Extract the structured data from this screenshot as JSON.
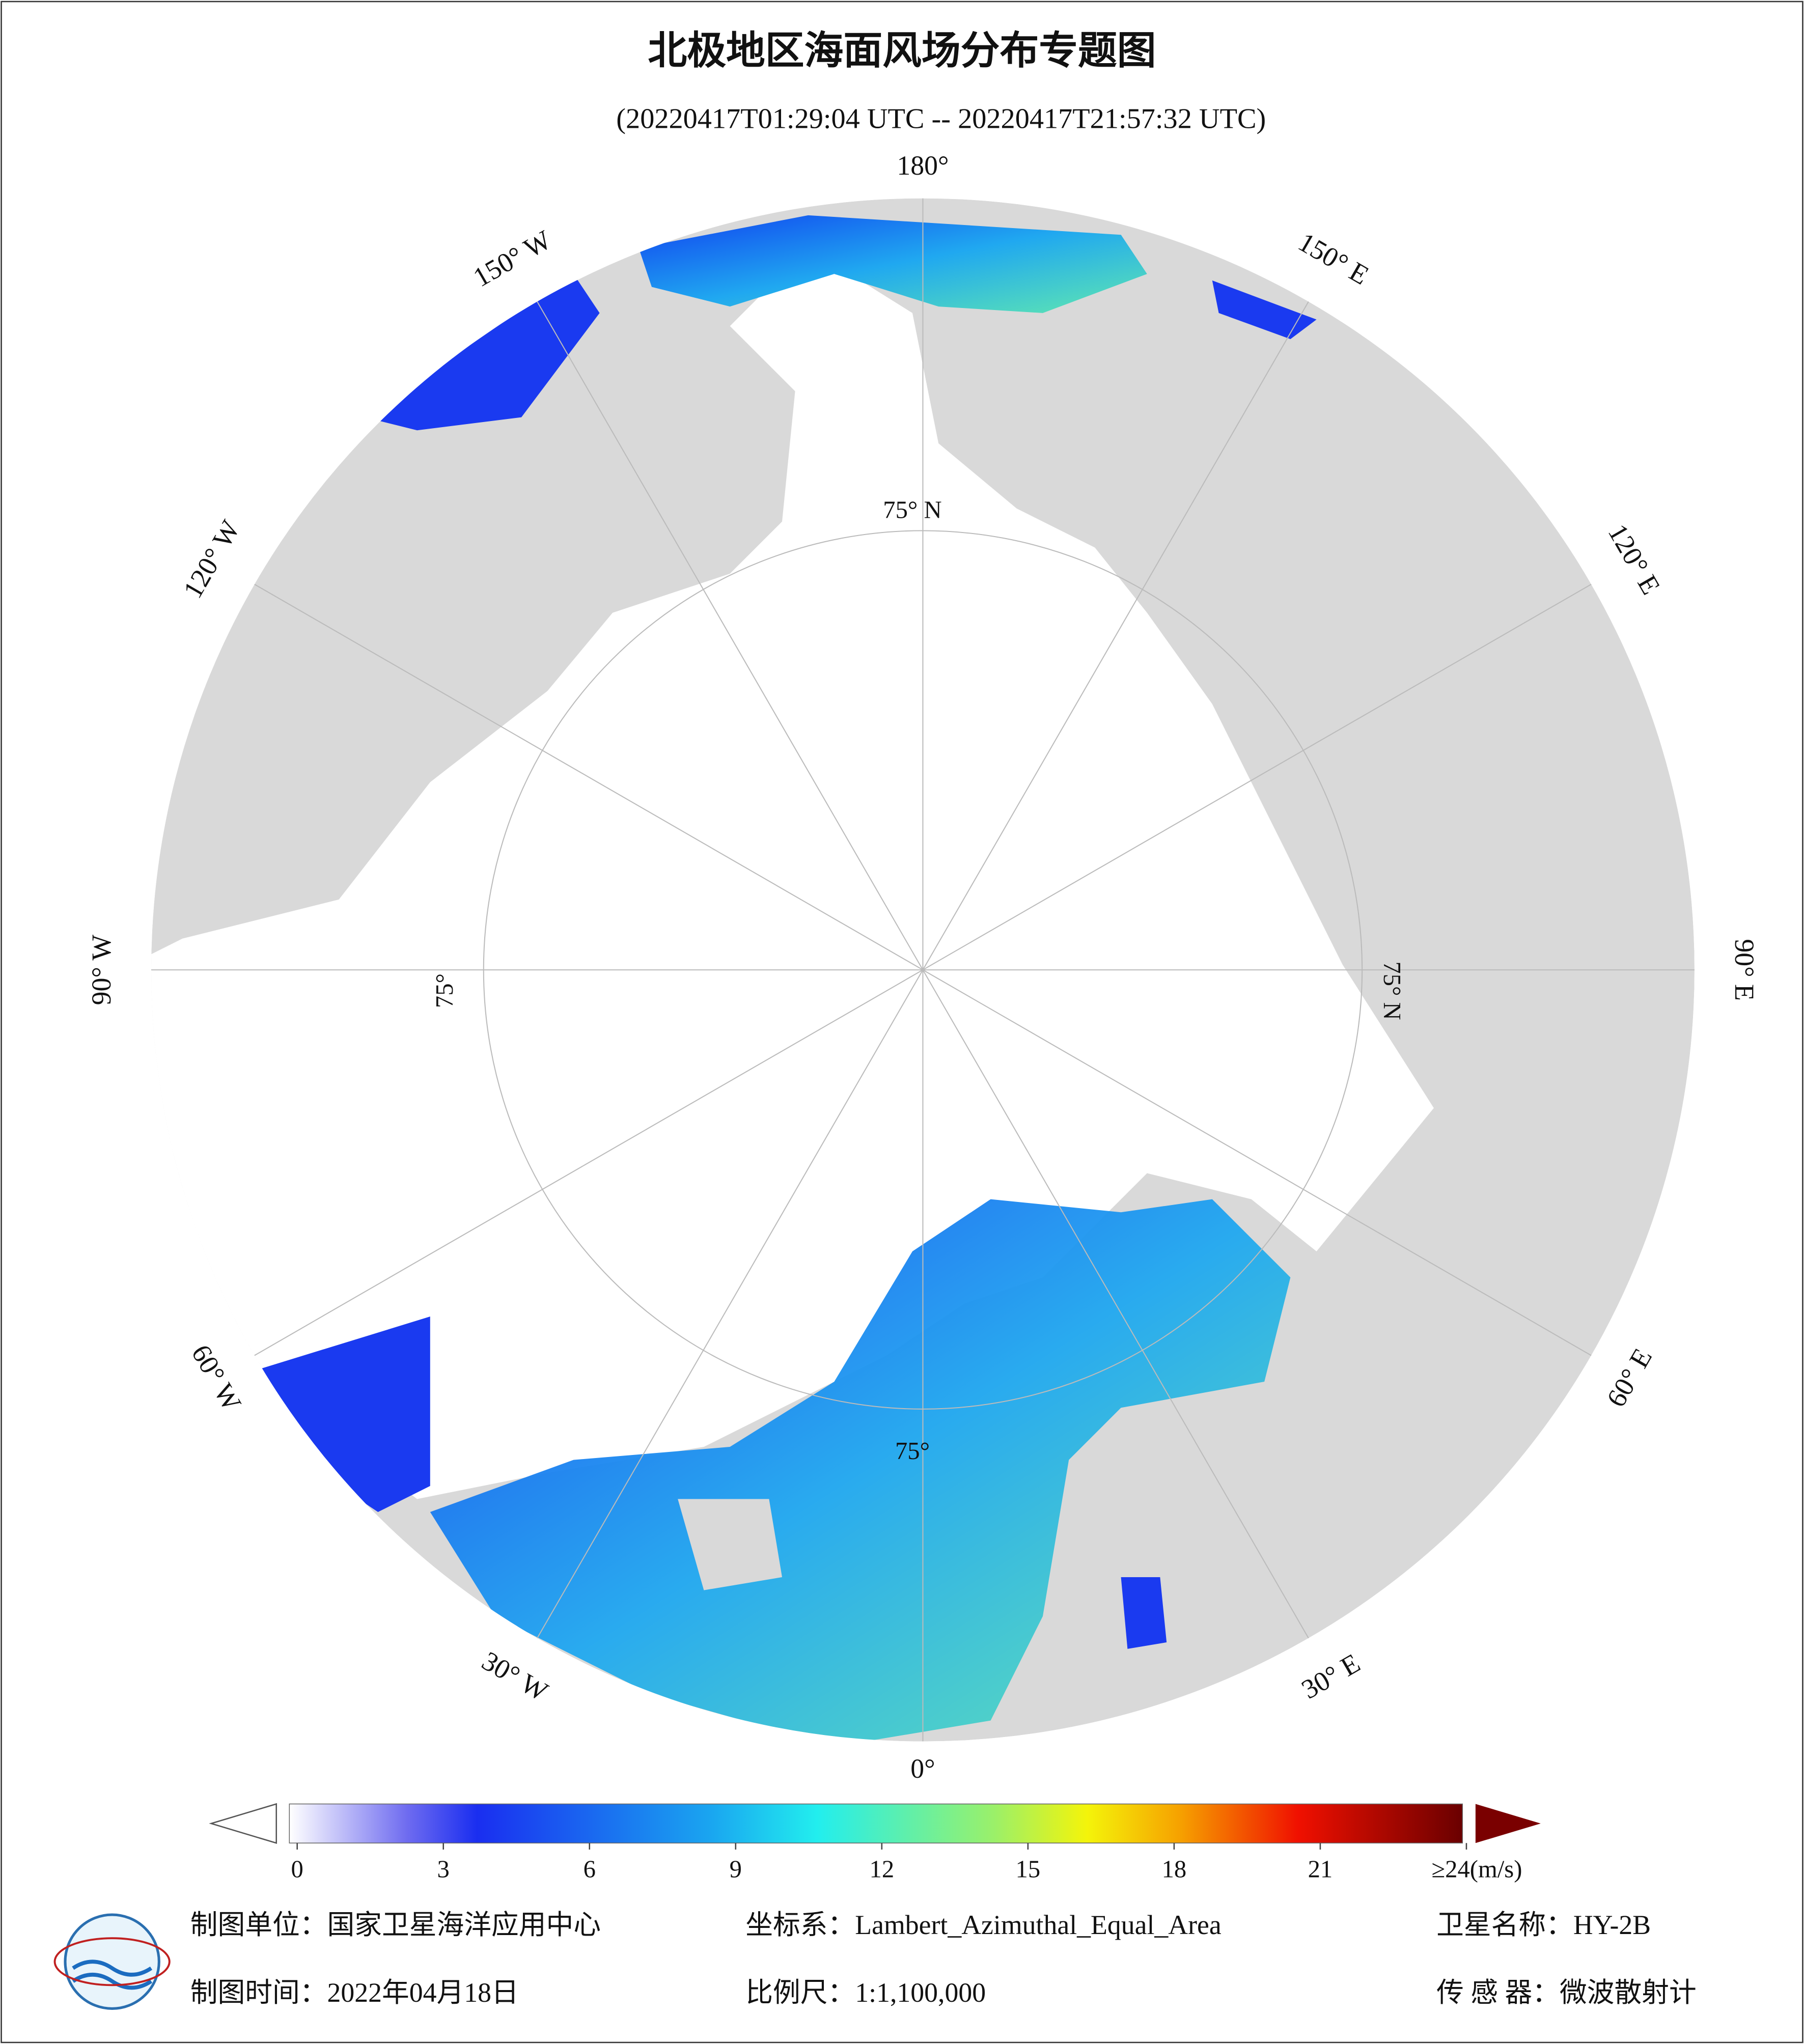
{
  "title": "北极地区海面风场分布专题图",
  "subtitle": "(20220417T01:29:04 UTC -- 20220417T21:57:32 UTC)",
  "map": {
    "longitude_labels": [
      "180°",
      "150° E",
      "120° E",
      "90° E",
      "60° E",
      "30° E",
      "0°",
      "30° W",
      "60° W",
      "90° W",
      "120° W",
      "150° W"
    ],
    "latitude_labels": [
      "75° N",
      "75° N",
      "75°",
      "75°"
    ]
  },
  "colorbar": {
    "xlim": [
      0,
      24
    ],
    "ticks": [
      0,
      3,
      6,
      9,
      12,
      15,
      18,
      21,
      {
        "value": 24,
        "label": "≥24(m/s)"
      }
    ]
  },
  "footer": {
    "unit": "制图单位：国家卫星海洋应用中心",
    "projection": "坐标系：Lambert_Azimuthal_Equal_Area",
    "satellite": "卫星名称：HY-2B",
    "date": "制图时间：2022年04月18日",
    "scale": "比例尺：1:1,100,000",
    "sensor": "传 感 器：微波散射计"
  }
}
